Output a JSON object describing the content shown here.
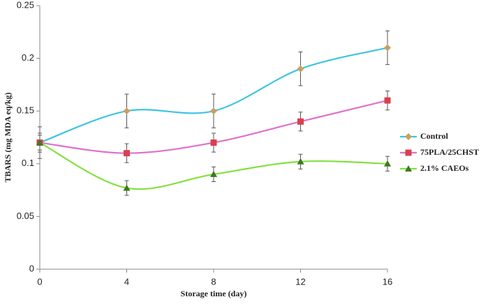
{
  "chart_data": {
    "type": "line",
    "x_label": "Storage time (day)",
    "y_label": "TBARS (mg MDA eq/kg)",
    "x": [
      0,
      4,
      8,
      12,
      16
    ],
    "xlim": [
      0,
      16
    ],
    "xticks": [
      0,
      4,
      8,
      12,
      16
    ],
    "ylim": [
      0,
      0.25
    ],
    "yticks": [
      0,
      0.05,
      0.1,
      0.15,
      0.2,
      0.25
    ],
    "smooth": true,
    "legend": "right",
    "series": [
      {
        "name": "Control",
        "color": "#3ec4e0",
        "marker_color": "#c8a064",
        "marker": "diamond",
        "values": [
          0.12,
          0.15,
          0.15,
          0.19,
          0.21
        ],
        "errors": [
          0.015,
          0.016,
          0.016,
          0.016,
          0.016
        ]
      },
      {
        "name": "75PLA/25CHST",
        "color": "#e070cc",
        "marker_color": "#d84050",
        "marker": "square",
        "values": [
          0.12,
          0.11,
          0.12,
          0.14,
          0.16
        ],
        "errors": [
          0.009,
          0.009,
          0.009,
          0.009,
          0.009
        ]
      },
      {
        "name": "2.1% CAEOs",
        "color": "#84e040",
        "marker_color": "#3c7a20",
        "marker": "triangle",
        "values": [
          0.12,
          0.077,
          0.09,
          0.102,
          0.1
        ],
        "errors": [
          0.007,
          0.007,
          0.007,
          0.007,
          0.007
        ]
      }
    ]
  }
}
